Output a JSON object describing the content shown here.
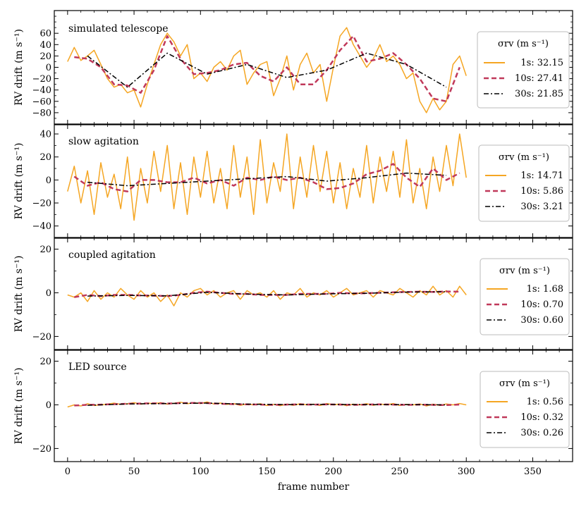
{
  "chart_data": [
    {
      "type": "line",
      "title": "simulated telescope",
      "ylabel": "RV drift (m s⁻¹)",
      "xlabel": "",
      "xlim": [
        -10,
        380
      ],
      "ylim": [
        -100,
        100
      ],
      "yticks": [
        -80,
        -60,
        -40,
        -20,
        0,
        20,
        40,
        60
      ],
      "legend": {
        "title": "σrv (m s⁻¹)",
        "placement": "right",
        "entries": [
          "1s:  32.15",
          "10s:  27.41",
          "30s:  21.85"
        ]
      },
      "series": [
        {
          "name": "1s",
          "style": "solid",
          "color": "#f5a623",
          "x": [
            0,
            5,
            10,
            15,
            20,
            25,
            30,
            35,
            40,
            45,
            50,
            55,
            60,
            65,
            70,
            75,
            80,
            85,
            90,
            95,
            100,
            105,
            110,
            115,
            120,
            125,
            130,
            135,
            140,
            145,
            150,
            155,
            160,
            165,
            170,
            175,
            180,
            185,
            190,
            195,
            200,
            205,
            210,
            215,
            220,
            225,
            230,
            235,
            240,
            245,
            250,
            255,
            260,
            265,
            270,
            275,
            280,
            285,
            290,
            295,
            300
          ],
          "values": [
            10,
            35,
            12,
            20,
            30,
            5,
            -20,
            -35,
            -30,
            -45,
            -40,
            -70,
            -30,
            5,
            40,
            60,
            45,
            20,
            40,
            -20,
            -10,
            -25,
            0,
            10,
            -5,
            20,
            30,
            -30,
            -10,
            5,
            10,
            -50,
            -20,
            20,
            -40,
            5,
            25,
            -10,
            5,
            -60,
            0,
            55,
            70,
            40,
            20,
            0,
            15,
            40,
            10,
            20,
            5,
            -20,
            -10,
            -60,
            -80,
            -55,
            -75,
            -60,
            5,
            20,
            -15
          ]
        },
        {
          "name": "10s",
          "style": "dashed",
          "color": "#c0395a",
          "x": [
            5,
            15,
            25,
            35,
            45,
            55,
            65,
            75,
            85,
            95,
            105,
            115,
            125,
            135,
            145,
            155,
            165,
            175,
            185,
            195,
            205,
            215,
            225,
            235,
            245,
            255,
            265,
            275,
            285,
            295
          ],
          "values": [
            18,
            15,
            0,
            -30,
            -32,
            -45,
            -5,
            55,
            15,
            -12,
            -10,
            -5,
            5,
            8,
            -15,
            -25,
            0,
            -30,
            -30,
            -5,
            30,
            55,
            10,
            15,
            25,
            5,
            -20,
            -55,
            -60,
            0
          ]
        },
        {
          "name": "30s",
          "style": "dashdot",
          "color": "#000000",
          "x": [
            15,
            45,
            75,
            105,
            135,
            165,
            195,
            225,
            255,
            285
          ],
          "values": [
            20,
            -35,
            25,
            -12,
            5,
            -18,
            -5,
            25,
            5,
            -35
          ]
        }
      ]
    },
    {
      "type": "line",
      "title": "slow agitation",
      "ylabel": "RV drift (m s⁻¹)",
      "xlabel": "",
      "xlim": [
        -10,
        380
      ],
      "ylim": [
        -50,
        48
      ],
      "yticks": [
        -40,
        -20,
        0,
        20,
        40
      ],
      "legend": {
        "title": "σrv (m s⁻¹)",
        "placement": "right",
        "entries": [
          "1s:  14.71",
          "10s:  5.86",
          "30s:  3.21"
        ]
      },
      "series": [
        {
          "name": "1s",
          "style": "solid",
          "color": "#f5a623",
          "x": [
            0,
            5,
            10,
            15,
            20,
            25,
            30,
            35,
            40,
            45,
            50,
            55,
            60,
            65,
            70,
            75,
            80,
            85,
            90,
            95,
            100,
            105,
            110,
            115,
            120,
            125,
            130,
            135,
            140,
            145,
            150,
            155,
            160,
            165,
            170,
            175,
            180,
            185,
            190,
            195,
            200,
            205,
            210,
            215,
            220,
            225,
            230,
            235,
            240,
            245,
            250,
            255,
            260,
            265,
            270,
            275,
            280,
            285,
            290,
            295,
            300
          ],
          "values": [
            -10,
            12,
            -20,
            8,
            -30,
            15,
            -15,
            5,
            -25,
            20,
            -35,
            10,
            -20,
            25,
            -10,
            30,
            -25,
            15,
            -30,
            20,
            -15,
            25,
            -20,
            10,
            -25,
            30,
            -15,
            20,
            -30,
            35,
            -20,
            15,
            -10,
            40,
            -25,
            20,
            -15,
            30,
            -10,
            25,
            -20,
            15,
            -25,
            10,
            -15,
            30,
            -20,
            20,
            -10,
            25,
            -15,
            35,
            -20,
            10,
            -25,
            20,
            -10,
            30,
            -5,
            40,
            2
          ]
        },
        {
          "name": "10s",
          "style": "dashed",
          "color": "#c0395a",
          "x": [
            5,
            15,
            25,
            35,
            45,
            55,
            65,
            75,
            85,
            95,
            105,
            115,
            125,
            135,
            145,
            155,
            165,
            175,
            185,
            195,
            205,
            215,
            225,
            235,
            245,
            255,
            265,
            275,
            285,
            295
          ],
          "values": [
            3,
            -5,
            -2,
            -8,
            -10,
            0,
            0,
            -2,
            -2,
            2,
            -3,
            0,
            -5,
            2,
            0,
            3,
            0,
            2,
            -2,
            -8,
            -7,
            -3,
            5,
            8,
            14,
            2,
            -6,
            10,
            0,
            6
          ]
        },
        {
          "name": "30s",
          "style": "dashdot",
          "color": "#000000",
          "x": [
            15,
            45,
            75,
            105,
            135,
            165,
            195,
            225,
            255,
            285
          ],
          "values": [
            -2,
            -5,
            -3,
            -1,
            1,
            3,
            -1,
            2,
            6,
            4
          ]
        }
      ]
    },
    {
      "type": "line",
      "title": "coupled agitation",
      "ylabel": "RV drift (m s⁻¹)",
      "xlabel": "",
      "xlim": [
        -10,
        380
      ],
      "ylim": [
        -26,
        25
      ],
      "yticks": [
        -20,
        0,
        20
      ],
      "legend": {
        "title": "σrv (m s⁻¹)",
        "placement": "right",
        "entries": [
          "1s:  1.68",
          "10s:  0.70",
          "30s:  0.60"
        ]
      },
      "series": [
        {
          "name": "1s",
          "style": "solid",
          "color": "#f5a623",
          "x": [
            0,
            5,
            10,
            15,
            20,
            25,
            30,
            35,
            40,
            45,
            50,
            55,
            60,
            65,
            70,
            75,
            80,
            85,
            90,
            95,
            100,
            105,
            110,
            115,
            120,
            125,
            130,
            135,
            140,
            145,
            150,
            155,
            160,
            165,
            170,
            175,
            180,
            185,
            190,
            195,
            200,
            205,
            210,
            215,
            220,
            225,
            230,
            235,
            240,
            245,
            250,
            255,
            260,
            265,
            270,
            275,
            280,
            285,
            290,
            295,
            300
          ],
          "values": [
            -1,
            -2,
            0,
            -4,
            1,
            -3,
            0,
            -2,
            2,
            -1,
            -3,
            1,
            -2,
            0,
            -4,
            -1,
            -6,
            0,
            -2,
            1,
            2,
            -1,
            1,
            -2,
            0,
            1,
            -3,
            1,
            -1,
            0,
            -2,
            1,
            -3,
            0,
            -1,
            2,
            -2,
            0,
            -1,
            1,
            -2,
            0,
            2,
            -1,
            0,
            1,
            -2,
            1,
            0,
            -1,
            2,
            0,
            -2,
            1,
            -1,
            3,
            -1,
            1,
            -2,
            3,
            -1
          ]
        },
        {
          "name": "10s",
          "style": "dashed",
          "color": "#c0395a",
          "x": [
            5,
            15,
            25,
            35,
            45,
            55,
            65,
            75,
            85,
            95,
            105,
            115,
            125,
            135,
            145,
            155,
            165,
            175,
            185,
            195,
            205,
            215,
            225,
            235,
            245,
            255,
            265,
            275,
            285,
            295
          ],
          "values": [
            -2,
            -1,
            -1.5,
            -1,
            -1,
            -1.2,
            -1.3,
            -1.5,
            -1,
            0,
            0.5,
            0,
            -0.5,
            -0.5,
            -1,
            -1,
            -1,
            -0.5,
            -0.5,
            -0.5,
            0,
            -0.3,
            -0.2,
            0,
            0.2,
            0.4,
            0.5,
            0.4,
            0.6,
            0.5
          ]
        },
        {
          "name": "30s",
          "style": "dashdot",
          "color": "#000000",
          "x": [
            15,
            45,
            75,
            105,
            135,
            165,
            195,
            225,
            255,
            285
          ],
          "values": [
            -1.5,
            -1.2,
            -1.4,
            0.2,
            -0.6,
            -1.0,
            -0.5,
            -0.2,
            0.3,
            0.5
          ]
        }
      ]
    },
    {
      "type": "line",
      "title": "LED source",
      "ylabel": "RV drift (m s⁻¹)",
      "xlabel": "frame number",
      "xlim": [
        -10,
        380
      ],
      "xticks": [
        0,
        50,
        100,
        150,
        200,
        250,
        300,
        350
      ],
      "ylim": [
        -26,
        25
      ],
      "yticks": [
        -20,
        0,
        20
      ],
      "legend": {
        "title": "σrv (m s⁻¹)",
        "placement": "right",
        "entries": [
          "1s:  0.56",
          "10s:  0.32",
          "30s:  0.26"
        ]
      },
      "series": [
        {
          "name": "1s",
          "style": "solid",
          "color": "#f5a623",
          "x": [
            0,
            5,
            10,
            15,
            20,
            25,
            30,
            35,
            40,
            45,
            50,
            55,
            60,
            65,
            70,
            75,
            80,
            85,
            90,
            95,
            100,
            105,
            110,
            115,
            120,
            125,
            130,
            135,
            140,
            145,
            150,
            155,
            160,
            165,
            170,
            175,
            180,
            185,
            190,
            195,
            200,
            205,
            210,
            215,
            220,
            225,
            230,
            235,
            240,
            245,
            250,
            255,
            260,
            265,
            270,
            275,
            280,
            285,
            290,
            295,
            300
          ],
          "values": [
            -1,
            0,
            -0.5,
            0.5,
            -0.3,
            0,
            0.3,
            0.8,
            0.2,
            0.5,
            1,
            0.3,
            0.8,
            0.5,
            1,
            0.3,
            0.7,
            1.2,
            0.5,
            1,
            0.6,
            1.3,
            0.4,
            0.8,
            0.2,
            0.6,
            -0.2,
            0.4,
            0,
            0.5,
            -0.3,
            0.2,
            -0.4,
            0.3,
            -0.2,
            0.5,
            0,
            0.3,
            -0.3,
            0.6,
            0,
            0.4,
            -0.4,
            0.3,
            0,
            0.5,
            -0.2,
            0.4,
            0,
            0.6,
            -0.3,
            0.2,
            0,
            0.4,
            -0.5,
            0.3,
            -0.2,
            0.4,
            0,
            0.6,
            0
          ]
        },
        {
          "name": "10s",
          "style": "dashed",
          "color": "#c0395a",
          "x": [
            5,
            15,
            25,
            35,
            45,
            55,
            65,
            75,
            85,
            95,
            105,
            115,
            125,
            135,
            145,
            155,
            165,
            175,
            185,
            195,
            205,
            215,
            225,
            235,
            245,
            255,
            265,
            275,
            285,
            295
          ],
          "values": [
            -0.3,
            0,
            0.1,
            0.3,
            0.5,
            0.6,
            0.7,
            0.6,
            0.8,
            0.9,
            0.8,
            0.5,
            0.3,
            0.2,
            0.1,
            0,
            0.1,
            0.2,
            0.1,
            0.2,
            0.1,
            0,
            0.1,
            0.2,
            0.1,
            0,
            0.1,
            0,
            -0.1,
            0.1
          ]
        },
        {
          "name": "30s",
          "style": "dashdot",
          "color": "#000000",
          "x": [
            15,
            45,
            75,
            105,
            135,
            165,
            195,
            225,
            255,
            285
          ],
          "values": [
            -0.2,
            0.4,
            0.6,
            0.8,
            0.3,
            0.1,
            0.2,
            0.1,
            0.1,
            0
          ]
        }
      ]
    }
  ]
}
